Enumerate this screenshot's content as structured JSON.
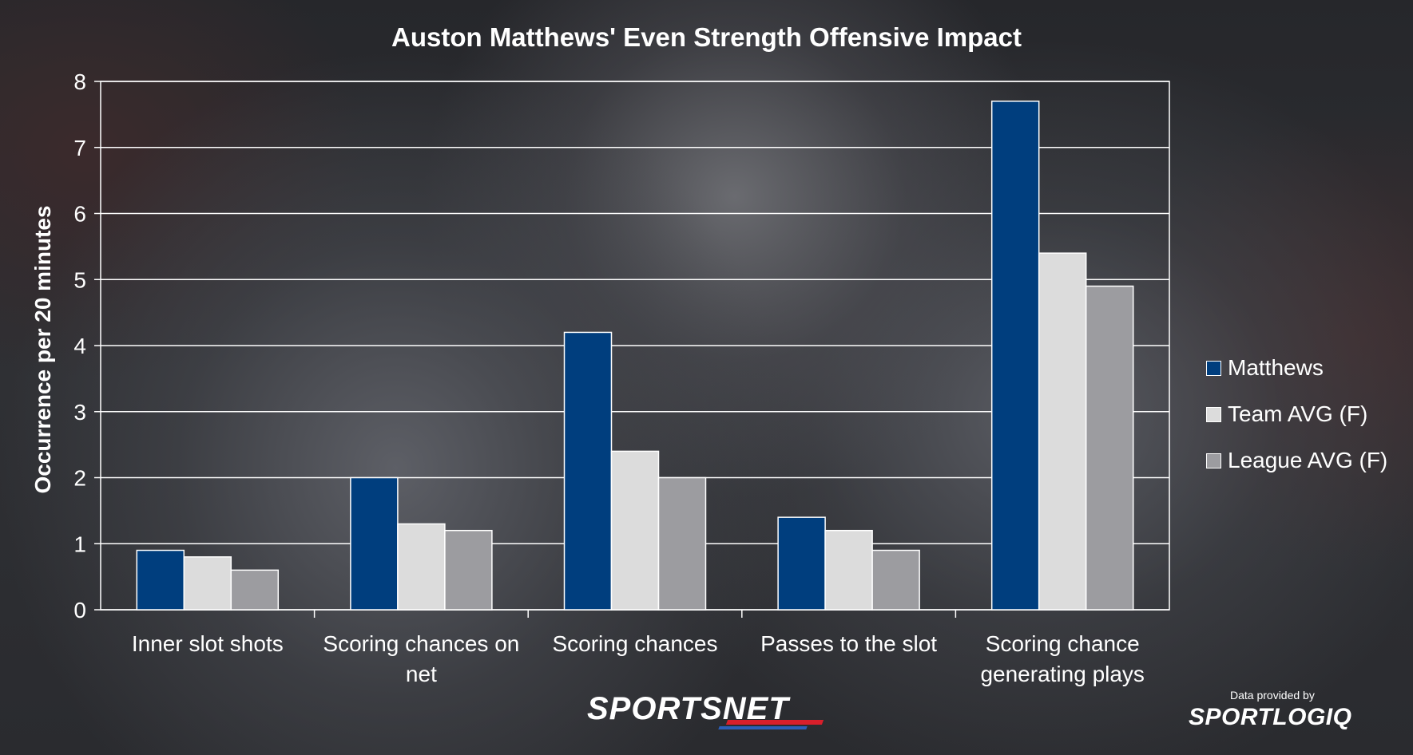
{
  "chart_data": {
    "type": "bar",
    "title": "Auston Matthews' Even Strength Offensive Impact",
    "ylabel": "Occurrence per 20 minutes",
    "xlabel": "",
    "ylim": [
      0,
      8
    ],
    "yticks": [
      0,
      1,
      2,
      3,
      4,
      5,
      6,
      7,
      8
    ],
    "grid": true,
    "legend_position": "right",
    "categories": [
      [
        "Inner slot shots"
      ],
      [
        "Scoring chances on",
        "net"
      ],
      [
        "Scoring chances"
      ],
      [
        "Passes to the slot"
      ],
      [
        "Scoring chance",
        "generating plays"
      ]
    ],
    "series": [
      {
        "name": "Matthews",
        "color": "#003e7e",
        "values": [
          0.9,
          2.0,
          4.2,
          1.4,
          7.7
        ]
      },
      {
        "name": "Team AVG (F)",
        "color": "#dcdcdc",
        "values": [
          0.8,
          1.3,
          2.4,
          1.2,
          5.4
        ]
      },
      {
        "name": "League AVG (F)",
        "color": "#9c9ca0",
        "values": [
          0.6,
          1.2,
          2.0,
          0.9,
          4.9
        ]
      }
    ]
  },
  "branding": {
    "broadcaster": "SPORTSNET",
    "provider_caption": "Data provided by",
    "provider": "SPORTLOGIQ"
  }
}
